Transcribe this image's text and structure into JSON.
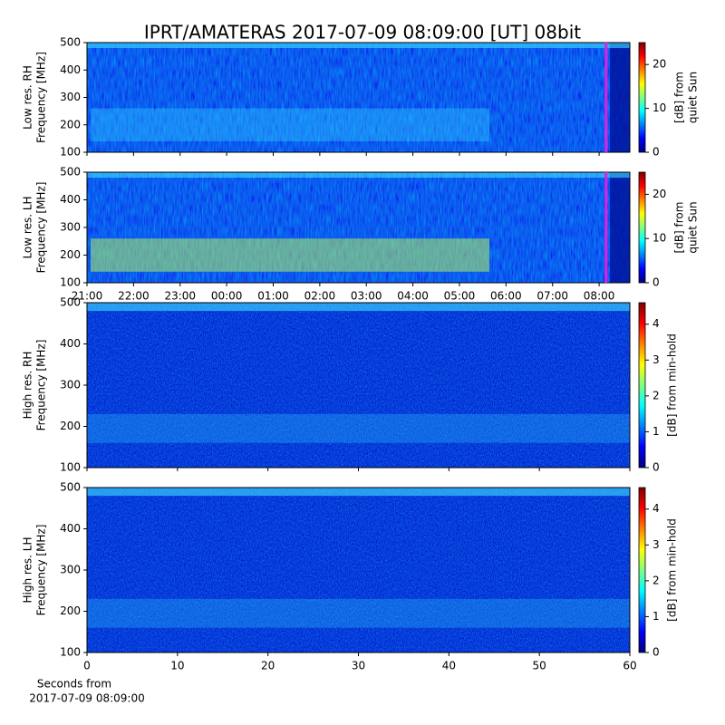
{
  "chart_data": [
    {
      "type": "heatmap",
      "title": "IPRT/AMATERAS 2017-07-09 08:09:00 [UT]   08bit",
      "ylabel": [
        "Low res. RH",
        "Frequency [MHz]"
      ],
      "ylim": [
        100,
        500
      ],
      "yticks": [
        100,
        200,
        300,
        400,
        500
      ],
      "xlim": [
        0,
        11.66
      ],
      "xticks": [
        0,
        1,
        2,
        3,
        4,
        5,
        6,
        7,
        8,
        9,
        10,
        11
      ],
      "xtick_labels": false,
      "marker": {
        "x": 11.15,
        "color": "#e020e0"
      },
      "colormap": [
        "#00007f",
        "#0000ff",
        "#0080ff",
        "#00ffff",
        "#80ff80",
        "#ffff00",
        "#ff8000",
        "#ff0000",
        "#7f0000"
      ],
      "colorbar": {
        "label": [
          "[dB] from",
          "quiet Sun"
        ],
        "lim": [
          0,
          25
        ],
        "ticks": [
          0,
          10,
          20
        ]
      }
    },
    {
      "type": "heatmap",
      "ylabel": [
        "Low res. LH",
        "Frequency [MHz]"
      ],
      "ylim": [
        100,
        500
      ],
      "yticks": [
        100,
        200,
        300,
        400,
        500
      ],
      "xlim": [
        0,
        11.66
      ],
      "xticks": [
        {
          "value": 0,
          "label": "21:00"
        },
        {
          "value": 1,
          "label": "22:00"
        },
        {
          "value": 2,
          "label": "23:00"
        },
        {
          "value": 3,
          "label": "00:00"
        },
        {
          "value": 4,
          "label": "01:00"
        },
        {
          "value": 5,
          "label": "02:00"
        },
        {
          "value": 6,
          "label": "03:00"
        },
        {
          "value": 7,
          "label": "04:00"
        },
        {
          "value": 8,
          "label": "05:00"
        },
        {
          "value": 9,
          "label": "06:00"
        },
        {
          "value": 10,
          "label": "07:00"
        },
        {
          "value": 11,
          "label": "08:00"
        }
      ],
      "marker": {
        "x": 11.15,
        "color": "#e020e0"
      },
      "colormap": [
        "#00007f",
        "#0000ff",
        "#0080ff",
        "#00ffff",
        "#80ff80",
        "#ffff00",
        "#ff8000",
        "#ff0000",
        "#7f0000"
      ],
      "colorbar": {
        "label": [
          "[dB] from",
          "quiet Sun"
        ],
        "lim": [
          0,
          25
        ],
        "ticks": [
          0,
          10,
          20
        ]
      }
    },
    {
      "type": "heatmap",
      "ylabel": [
        "High res. RH",
        "Frequency [MHz]"
      ],
      "ylim": [
        100,
        500
      ],
      "yticks": [
        100,
        200,
        300,
        400,
        500
      ],
      "xlim": [
        0,
        60
      ],
      "xticks": [
        0,
        10,
        20,
        30,
        40,
        50,
        60
      ],
      "xtick_labels": false,
      "colormap": [
        "#00007f",
        "#0000ff",
        "#0080ff",
        "#00ffff",
        "#80ff80",
        "#ffff00",
        "#ff8000",
        "#ff0000",
        "#7f0000"
      ],
      "colorbar": {
        "label": [
          "[dB] from min-hold"
        ],
        "lim": [
          0,
          4.6
        ],
        "ticks": [
          0,
          1,
          2,
          3,
          4
        ]
      }
    },
    {
      "type": "heatmap",
      "ylabel": [
        "High res. LH",
        "Frequency [MHz]"
      ],
      "ylim": [
        100,
        500
      ],
      "yticks": [
        100,
        200,
        300,
        400,
        500
      ],
      "xlim": [
        0,
        60
      ],
      "xticks": [
        0,
        10,
        20,
        30,
        40,
        50,
        60
      ],
      "xlabel": [
        "Seconds from",
        "2017-07-09 08:09:00"
      ],
      "colormap": [
        "#00007f",
        "#0000ff",
        "#0080ff",
        "#00ffff",
        "#80ff80",
        "#ffff00",
        "#ff8000",
        "#ff0000",
        "#7f0000"
      ],
      "colorbar": {
        "label": [
          "[dB] from min-hold"
        ],
        "lim": [
          0,
          4.6
        ],
        "ticks": [
          0,
          1,
          2,
          3,
          4
        ]
      }
    }
  ]
}
